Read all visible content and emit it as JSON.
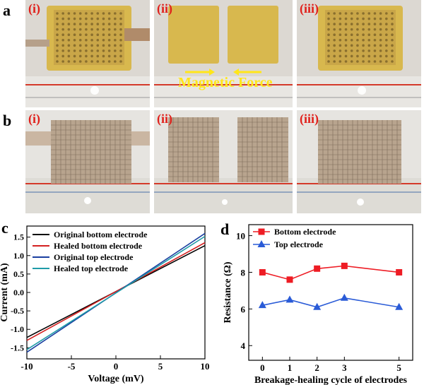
{
  "panels": {
    "a": {
      "letter": "a",
      "sub_labels": [
        "(i)",
        "(ii)",
        "(iii)"
      ],
      "annotation": "Magnetic Force"
    },
    "b": {
      "letter": "b",
      "sub_labels": [
        "(i)",
        "(ii)",
        "(iii)"
      ]
    },
    "c": {
      "letter": "c"
    },
    "d": {
      "letter": "d"
    }
  },
  "chart_data": [
    {
      "type": "line",
      "panel": "c",
      "xlabel": "Voltage (mV)",
      "ylabel": "Current (mA)",
      "xlim": [
        -10,
        10
      ],
      "ylim": [
        -1.8,
        1.8
      ],
      "xticks": [
        -10,
        -5,
        0,
        5,
        10
      ],
      "yticks": [
        -1.5,
        -1.0,
        -0.5,
        0.0,
        0.5,
        1.0,
        1.5
      ],
      "legend_position": "top-left",
      "series": [
        {
          "name": "Original bottom electrode",
          "color": "#000000",
          "x": [
            -10,
            10
          ],
          "y": [
            -1.22,
            1.27
          ]
        },
        {
          "name": "Healed bottom electrode",
          "color": "#d42020",
          "x": [
            -10,
            10
          ],
          "y": [
            -1.3,
            1.35
          ]
        },
        {
          "name": "Original top electrode",
          "color": "#1a3fa0",
          "x": [
            -10,
            10
          ],
          "y": [
            -1.62,
            1.6
          ]
        },
        {
          "name": "Healed top electrode",
          "color": "#1f9ba8",
          "x": [
            -10,
            10
          ],
          "y": [
            -1.55,
            1.52
          ]
        }
      ]
    },
    {
      "type": "line",
      "panel": "d",
      "xlabel": "Breakage-healing cycle of electrodes",
      "ylabel": "Resistance (Ω)",
      "xlim": [
        -0.5,
        5.5
      ],
      "ylim": [
        3.2,
        10.6
      ],
      "xticks": [
        0,
        1,
        2,
        3,
        5
      ],
      "yticks": [
        4,
        6,
        8,
        10
      ],
      "legend_position": "top-left",
      "series": [
        {
          "name": "Bottom electrode",
          "color": "#ee1c24",
          "marker": "square",
          "x": [
            0,
            1,
            2,
            3,
            5
          ],
          "y": [
            8.0,
            7.6,
            8.2,
            8.35,
            8.0
          ]
        },
        {
          "name": "Top electrode",
          "color": "#2a5bd7",
          "marker": "triangle",
          "x": [
            0,
            1,
            2,
            3,
            5
          ],
          "y": [
            6.2,
            6.5,
            6.1,
            6.6,
            6.1
          ]
        }
      ]
    }
  ]
}
